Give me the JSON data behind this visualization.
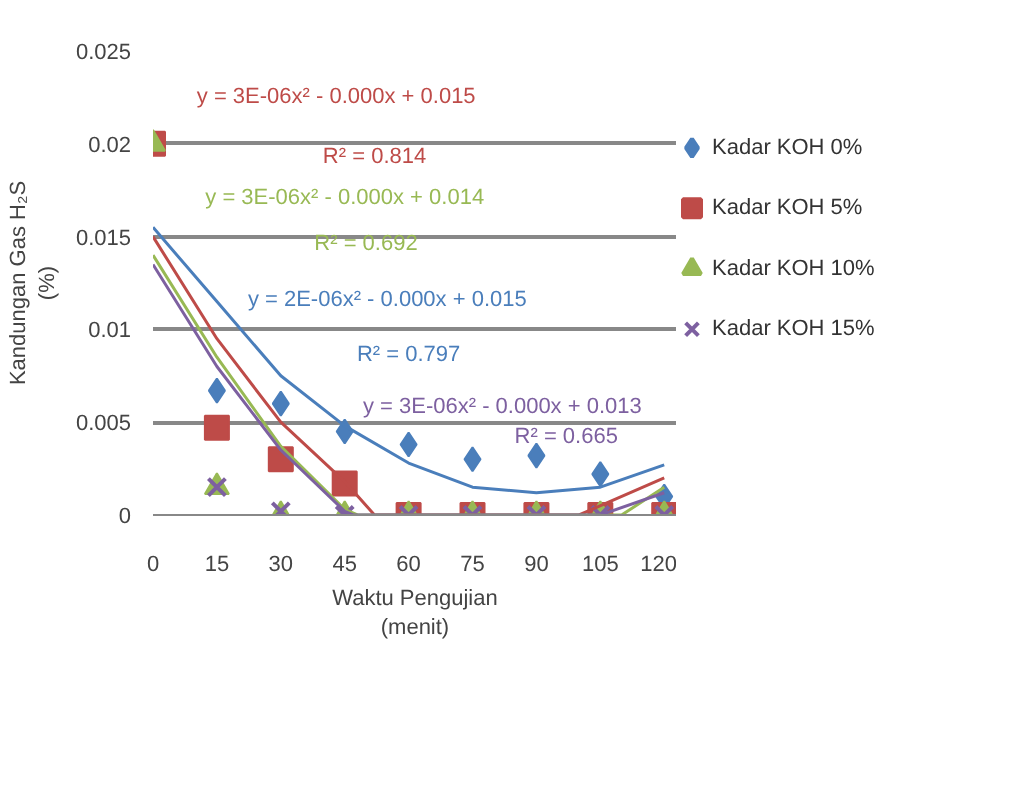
{
  "chart_data": {
    "type": "scatter",
    "xlabel": "Waktu Pengujian\n(menit)",
    "ylabel": "Kandungan Gas H₂S\n(%)",
    "x": [
      0,
      15,
      30,
      45,
      60,
      75,
      90,
      105,
      120
    ],
    "xlim": [
      0,
      123
    ],
    "xticks": [
      0,
      15,
      30,
      45,
      60,
      75,
      90,
      105,
      120
    ],
    "ylim": [
      0,
      0.025
    ],
    "yticks": [
      0,
      0.005,
      0.01,
      0.015,
      0.02,
      0.025
    ],
    "grid": "y",
    "legend": "right",
    "series": [
      {
        "name": "Kadar KOH 0%",
        "color": "#4a7ebb",
        "marker": "diamond",
        "values": [
          null,
          0.0067,
          0.006,
          0.0045,
          0.0038,
          0.003,
          0.0032,
          0.0022,
          0.001
        ]
      },
      {
        "name": "Kadar KOH 5%",
        "color": "#be4b48",
        "marker": "square",
        "values": [
          0.02,
          0.0047,
          0.003,
          0.0017,
          0,
          0,
          0,
          0,
          0
        ]
      },
      {
        "name": "Kadar KOH 10%",
        "color": "#98b954",
        "marker": "triangle",
        "values": [
          0.02,
          0.0015,
          0,
          0,
          0,
          0,
          0,
          0,
          0
        ]
      },
      {
        "name": "Kadar KOH 15%",
        "color": "#7d60a0",
        "marker": "cross",
        "values": [
          null,
          0.0015,
          0.0002,
          0,
          0,
          0,
          0,
          0,
          0
        ]
      },
      {
        "type": "line",
        "color": "#4a7ebb",
        "x": [
          0,
          15,
          30,
          45,
          60,
          75,
          90,
          105,
          120
        ],
        "values": [
          0.0155,
          0.0115,
          0.0075,
          0.0048,
          0.0028,
          0.0015,
          0.0012,
          0.0015,
          0.0027
        ]
      },
      {
        "type": "line",
        "color": "#be4b48",
        "x": [
          0,
          15,
          30,
          45,
          52,
          100,
          120
        ],
        "values": [
          0.015,
          0.0095,
          0.005,
          0.0018,
          0,
          0,
          0.002
        ]
      },
      {
        "type": "line",
        "color": "#98b954",
        "x": [
          0,
          15,
          30,
          45,
          48,
          110,
          120
        ],
        "values": [
          0.014,
          0.0085,
          0.0037,
          0.0003,
          0,
          0,
          0.0015
        ]
      },
      {
        "type": "line",
        "color": "#7d60a0",
        "x": [
          0,
          15,
          30,
          45,
          47,
          105,
          120
        ],
        "values": [
          0.0135,
          0.008,
          0.0035,
          0.0002,
          0,
          0,
          0.0012
        ]
      }
    ],
    "annotations": [
      "y = 3E-06x² - 0.000x + 0.015",
      "R² = 0.814",
      "y = 3E-06x² - 0.000x + 0.014",
      "R² = 0.692",
      "y = 2E-06x² - 0.000x + 0.015",
      "R² = 0.797",
      "y = 3E-06x² - 0.000x + 0.013",
      "R² = 0.665"
    ]
  }
}
